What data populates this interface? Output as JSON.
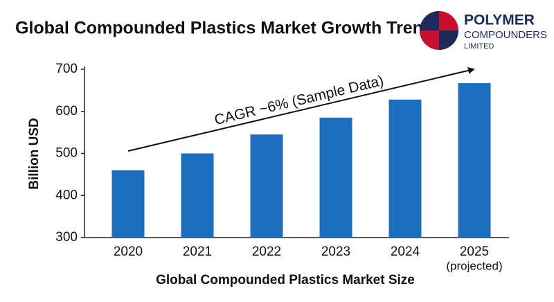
{
  "chart_data": {
    "type": "bar",
    "title": "Global Compounded Plastics Market Growth Trend",
    "categories": [
      "2020",
      "2021",
      "2022",
      "2023",
      "2024",
      "2025"
    ],
    "category_sublabels": [
      null,
      null,
      null,
      null,
      null,
      "(projected)"
    ],
    "values": [
      460,
      500,
      545,
      585,
      628,
      667
    ],
    "color": "#1b6fbe",
    "ylim": [
      300,
      700
    ],
    "yticks": [
      300,
      400,
      500,
      600,
      700
    ],
    "grid": false,
    "y_label": "Billion USD",
    "x_label": "Global Compounded Plastics Market Size",
    "annotation": "CAGR ~6% (Sample Data)"
  },
  "logo": {
    "line1": "POLYMER",
    "line2": "COMPOUNDERS",
    "line3": "LIMITED"
  }
}
